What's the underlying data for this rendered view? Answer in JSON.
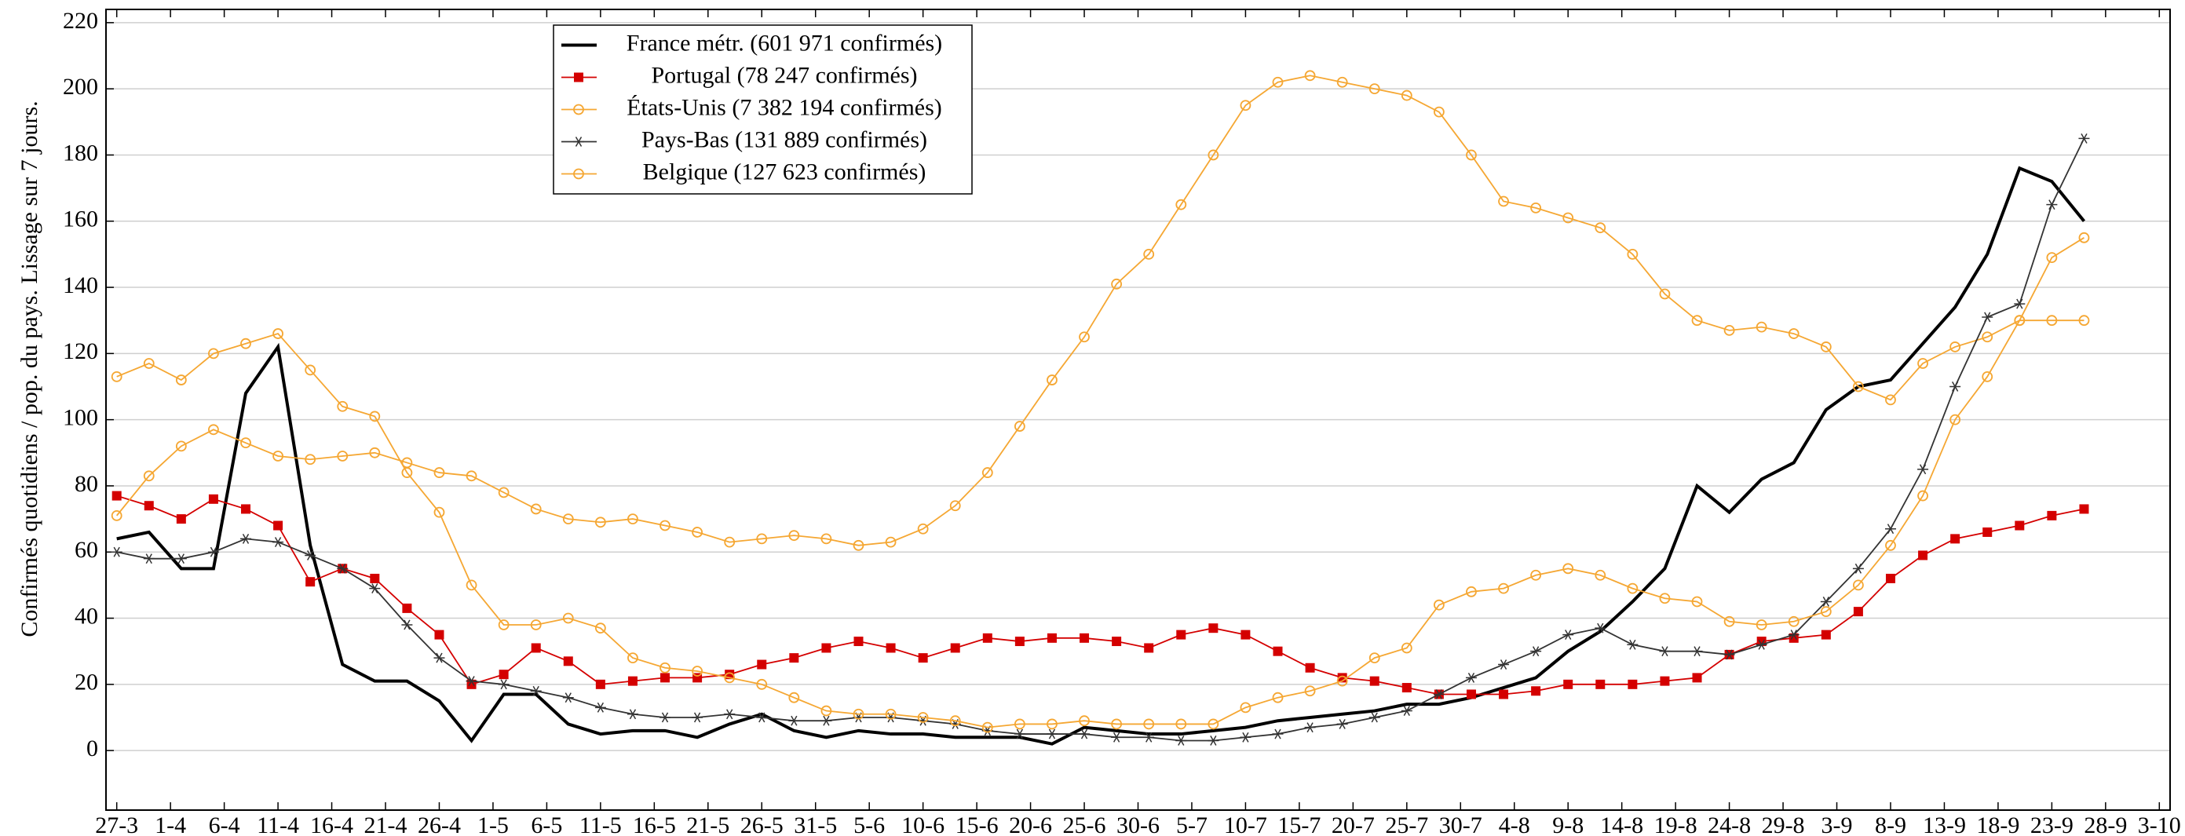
{
  "chart_data": {
    "type": "line",
    "y_label": "Confirmés quotidiens / pop. du pays. Lissage sur 7 jours.",
    "x": [
      0,
      3,
      6,
      9,
      12,
      15,
      18,
      21,
      24,
      27,
      30,
      33,
      36,
      39,
      42,
      45,
      48,
      51,
      54,
      57,
      60,
      63,
      66,
      69,
      72,
      75,
      78,
      81,
      84,
      87,
      90,
      93,
      96,
      99,
      102,
      105,
      108,
      111,
      114,
      117,
      120,
      123,
      126,
      129,
      132,
      135,
      138,
      141,
      144,
      147,
      150,
      153,
      156,
      159,
      162,
      165,
      168,
      171,
      174,
      177,
      180,
      183
    ],
    "xlim": [
      -1,
      191
    ],
    "xticks": [
      {
        "value": 0,
        "label": "27-3"
      },
      {
        "value": 5,
        "label": "1-4"
      },
      {
        "value": 10,
        "label": "6-4"
      },
      {
        "value": 15,
        "label": "11-4"
      },
      {
        "value": 20,
        "label": "16-4"
      },
      {
        "value": 25,
        "label": "21-4"
      },
      {
        "value": 30,
        "label": "26-4"
      },
      {
        "value": 35,
        "label": "1-5"
      },
      {
        "value": 40,
        "label": "6-5"
      },
      {
        "value": 45,
        "label": "11-5"
      },
      {
        "value": 50,
        "label": "16-5"
      },
      {
        "value": 55,
        "label": "21-5"
      },
      {
        "value": 60,
        "label": "26-5"
      },
      {
        "value": 65,
        "label": "31-5"
      },
      {
        "value": 70,
        "label": "5-6"
      },
      {
        "value": 75,
        "label": "10-6"
      },
      {
        "value": 80,
        "label": "15-6"
      },
      {
        "value": 85,
        "label": "20-6"
      },
      {
        "value": 90,
        "label": "25-6"
      },
      {
        "value": 95,
        "label": "30-6"
      },
      {
        "value": 100,
        "label": "5-7"
      },
      {
        "value": 105,
        "label": "10-7"
      },
      {
        "value": 110,
        "label": "15-7"
      },
      {
        "value": 115,
        "label": "20-7"
      },
      {
        "value": 120,
        "label": "25-7"
      },
      {
        "value": 125,
        "label": "30-7"
      },
      {
        "value": 130,
        "label": "4-8"
      },
      {
        "value": 135,
        "label": "9-8"
      },
      {
        "value": 140,
        "label": "14-8"
      },
      {
        "value": 145,
        "label": "19-8"
      },
      {
        "value": 150,
        "label": "24-8"
      },
      {
        "value": 155,
        "label": "29-8"
      },
      {
        "value": 160,
        "label": "3-9"
      },
      {
        "value": 165,
        "label": "8-9"
      },
      {
        "value": 170,
        "label": "13-9"
      },
      {
        "value": 175,
        "label": "18-9"
      },
      {
        "value": 180,
        "label": "23-9"
      },
      {
        "value": 185,
        "label": "28-9"
      },
      {
        "value": 190,
        "label": "3-10"
      }
    ],
    "ylim": [
      -18,
      224
    ],
    "yticks": [
      0,
      20,
      40,
      60,
      80,
      100,
      120,
      140,
      160,
      180,
      200,
      220
    ],
    "grid": true,
    "legend": "top-left",
    "series": [
      {
        "name": "France métr. (601 971 confirmés)",
        "color": "#000000",
        "marker": "none",
        "values": [
          64,
          66,
          55,
          55,
          108,
          122,
          62,
          26,
          21,
          21,
          15,
          3,
          17,
          17,
          8,
          5,
          6,
          6,
          4,
          8,
          11,
          6,
          4,
          6,
          5,
          5,
          4,
          4,
          4,
          2,
          7,
          6,
          5,
          5,
          6,
          7,
          9,
          10,
          11,
          12,
          14,
          14,
          16,
          19,
          22,
          30,
          36,
          45,
          55,
          80,
          72,
          82,
          87,
          103,
          110,
          112,
          123,
          134,
          150,
          176,
          172,
          160
        ]
      },
      {
        "name": "Portugal (78 247 confirmés)",
        "color": "#d40000",
        "marker": "square",
        "values": [
          77,
          74,
          70,
          76,
          73,
          68,
          51,
          55,
          52,
          43,
          35,
          20,
          23,
          31,
          27,
          20,
          21,
          22,
          22,
          23,
          26,
          28,
          31,
          33,
          31,
          28,
          31,
          34,
          33,
          34,
          34,
          33,
          31,
          35,
          37,
          35,
          30,
          25,
          22,
          21,
          19,
          17,
          17,
          17,
          18,
          20,
          20,
          20,
          21,
          22,
          29,
          33,
          34,
          35,
          42,
          52,
          59,
          64,
          66,
          68,
          71,
          73
        ]
      },
      {
        "name": "États-Unis (7 382 194 confirmés)",
        "color": "#f5a733",
        "marker": "circle",
        "values": [
          71,
          83,
          92,
          97,
          93,
          89,
          88,
          89,
          90,
          87,
          84,
          83,
          78,
          73,
          70,
          69,
          70,
          68,
          66,
          63,
          64,
          65,
          64,
          62,
          63,
          67,
          74,
          84,
          98,
          112,
          125,
          141,
          150,
          165,
          180,
          195,
          202,
          204,
          202,
          200,
          198,
          193,
          180,
          166,
          164,
          161,
          158,
          150,
          138,
          130,
          127,
          128,
          126,
          122,
          110,
          106,
          117,
          122,
          125,
          130,
          130,
          130
        ]
      },
      {
        "name": "Pays-Bas (131 889 confirmés)",
        "color": "#333333",
        "marker": "star",
        "values": [
          60,
          58,
          58,
          60,
          64,
          63,
          59,
          55,
          49,
          38,
          28,
          21,
          20,
          18,
          16,
          13,
          11,
          10,
          10,
          11,
          10,
          9,
          9,
          10,
          10,
          9,
          8,
          6,
          5,
          5,
          5,
          4,
          4,
          3,
          3,
          4,
          5,
          7,
          8,
          10,
          12,
          17,
          22,
          26,
          30,
          35,
          37,
          32,
          30,
          30,
          29,
          32,
          35,
          45,
          55,
          67,
          85,
          110,
          131,
          135,
          165,
          185
        ]
      },
      {
        "name": "Belgique (127 623 confirmés)",
        "color": "#f5a733",
        "marker": "circle",
        "values": [
          113,
          117,
          112,
          120,
          123,
          126,
          115,
          104,
          101,
          84,
          72,
          50,
          38,
          38,
          40,
          37,
          28,
          25,
          24,
          22,
          20,
          16,
          12,
          11,
          11,
          10,
          9,
          7,
          8,
          8,
          9,
          8,
          8,
          8,
          8,
          13,
          16,
          18,
          21,
          28,
          31,
          44,
          48,
          49,
          53,
          55,
          53,
          49,
          46,
          45,
          39,
          38,
          39,
          42,
          50,
          62,
          77,
          100,
          113,
          130,
          149,
          155
        ]
      }
    ]
  }
}
